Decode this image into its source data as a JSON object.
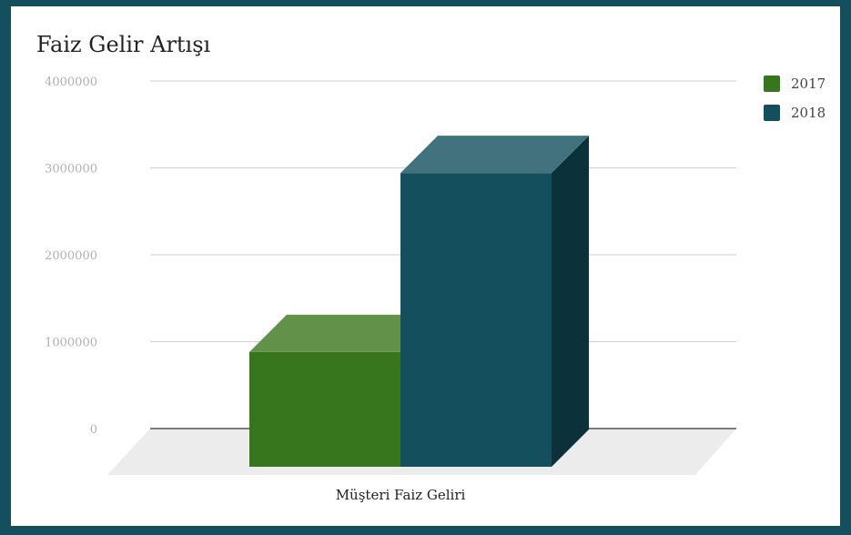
{
  "chart_data": {
    "type": "bar",
    "title": "Faiz Gelir Artışı",
    "categories": [
      "Müşteri Faiz Geliri"
    ],
    "series": [
      {
        "name": "2017",
        "values": [
          1310000
        ],
        "color": "#38761d",
        "top_color": "#62914a",
        "side_color": "#2a5916"
      },
      {
        "name": "2018",
        "values": [
          3370000
        ],
        "color": "#134f5c",
        "top_color": "#42727d",
        "side_color": "#0b323b"
      }
    ],
    "ylim": [
      0,
      4000000
    ],
    "yticks": [
      0,
      1000000,
      2000000,
      3000000,
      4000000
    ],
    "ytick_labels": [
      "0",
      "1000000",
      "2000000",
      "3000000",
      "4000000"
    ],
    "grid": true,
    "legend_position": "top-right",
    "xlabel": "",
    "ylabel": ""
  }
}
